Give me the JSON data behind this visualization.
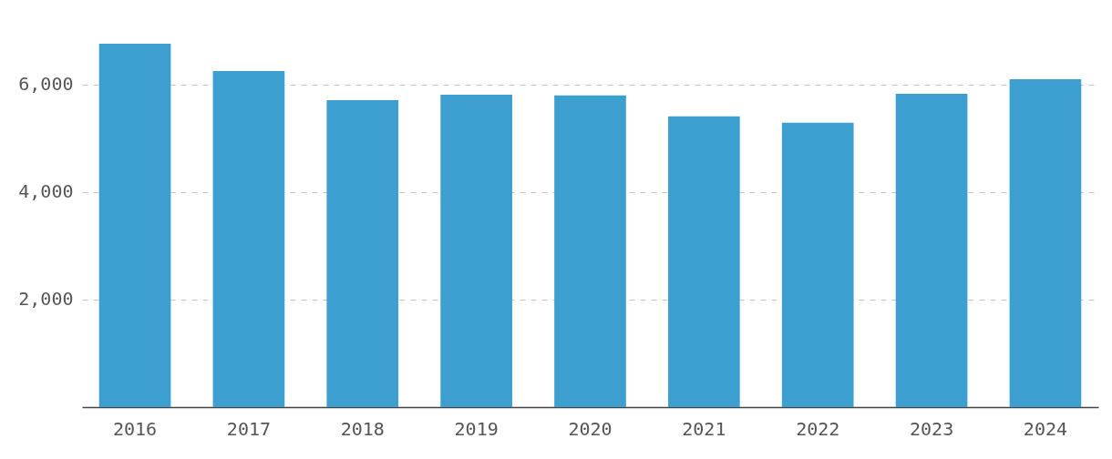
{
  "chart_data": {
    "type": "bar",
    "categories": [
      "2016",
      "2017",
      "2018",
      "2019",
      "2020",
      "2021",
      "2022",
      "2023",
      "2024"
    ],
    "values": [
      6760,
      6250,
      5710,
      5810,
      5800,
      5410,
      5290,
      5830,
      6100
    ],
    "color": "#3d9fd0",
    "ylim": [
      0,
      6760
    ],
    "yticks": [
      {
        "value": 2000,
        "label": "2,000"
      },
      {
        "value": 4000,
        "label": "4,000"
      },
      {
        "value": 6000,
        "label": "6,000"
      }
    ],
    "grid": "y"
  }
}
